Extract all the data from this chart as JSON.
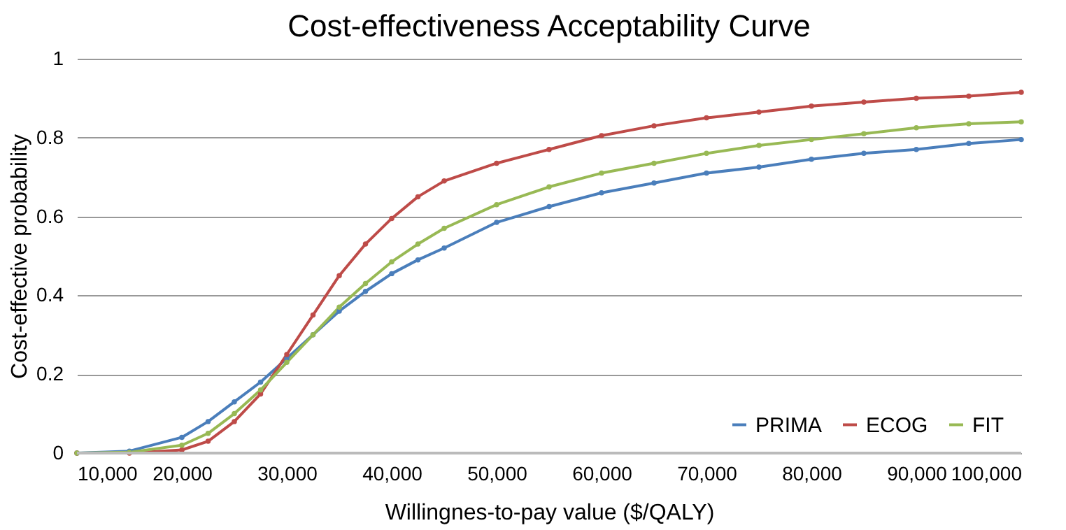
{
  "chart_data": {
    "type": "line",
    "title": "Cost-effectiveness Acceptability Curve",
    "xlabel": "Willingnes-to-pay value ($/QALY)",
    "ylabel": "Cost-effective  probability",
    "x": [
      10000,
      15000,
      20000,
      22500,
      25000,
      27500,
      30000,
      32500,
      35000,
      37500,
      40000,
      42500,
      45000,
      50000,
      55000,
      60000,
      65000,
      70000,
      75000,
      80000,
      85000,
      90000,
      95000,
      100000
    ],
    "series": [
      {
        "name": "PRIMA",
        "color": "#4a7ebb",
        "values": [
          0,
          0.005,
          0.04,
          0.08,
          0.13,
          0.18,
          0.24,
          0.3,
          0.36,
          0.41,
          0.455,
          0.49,
          0.52,
          0.585,
          0.625,
          0.66,
          0.685,
          0.71,
          0.725,
          0.745,
          0.76,
          0.77,
          0.785,
          0.795
        ]
      },
      {
        "name": "ECOG",
        "color": "#be4b48",
        "values": [
          0,
          0,
          0.008,
          0.03,
          0.08,
          0.15,
          0.25,
          0.35,
          0.45,
          0.53,
          0.595,
          0.65,
          0.69,
          0.735,
          0.77,
          0.805,
          0.83,
          0.85,
          0.865,
          0.88,
          0.89,
          0.9,
          0.905,
          0.915
        ]
      },
      {
        "name": "FIT",
        "color": "#98b954",
        "values": [
          0,
          0.002,
          0.02,
          0.05,
          0.1,
          0.16,
          0.23,
          0.3,
          0.37,
          0.43,
          0.485,
          0.53,
          0.57,
          0.63,
          0.675,
          0.71,
          0.735,
          0.76,
          0.78,
          0.795,
          0.81,
          0.825,
          0.835,
          0.84
        ]
      }
    ],
    "xlim": [
      10000,
      100000
    ],
    "xticks": [
      {
        "value": 10000,
        "label": "10,000"
      },
      {
        "value": 20000,
        "label": "20,000"
      },
      {
        "value": 30000,
        "label": "30,000"
      },
      {
        "value": 40000,
        "label": "40,000"
      },
      {
        "value": 50000,
        "label": "50,000"
      },
      {
        "value": 60000,
        "label": "60,000"
      },
      {
        "value": 70000,
        "label": "70,000"
      },
      {
        "value": 80000,
        "label": "80,000"
      },
      {
        "value": 90000,
        "label": "90,000"
      },
      {
        "value": 100000,
        "label": "100,000"
      }
    ],
    "ylim": [
      0,
      1
    ],
    "yticks": [
      0,
      0.2,
      0.4,
      0.6,
      0.8,
      1
    ],
    "grid": "y",
    "legend": "bottom right",
    "marker": "circle",
    "line_style": "solid"
  }
}
